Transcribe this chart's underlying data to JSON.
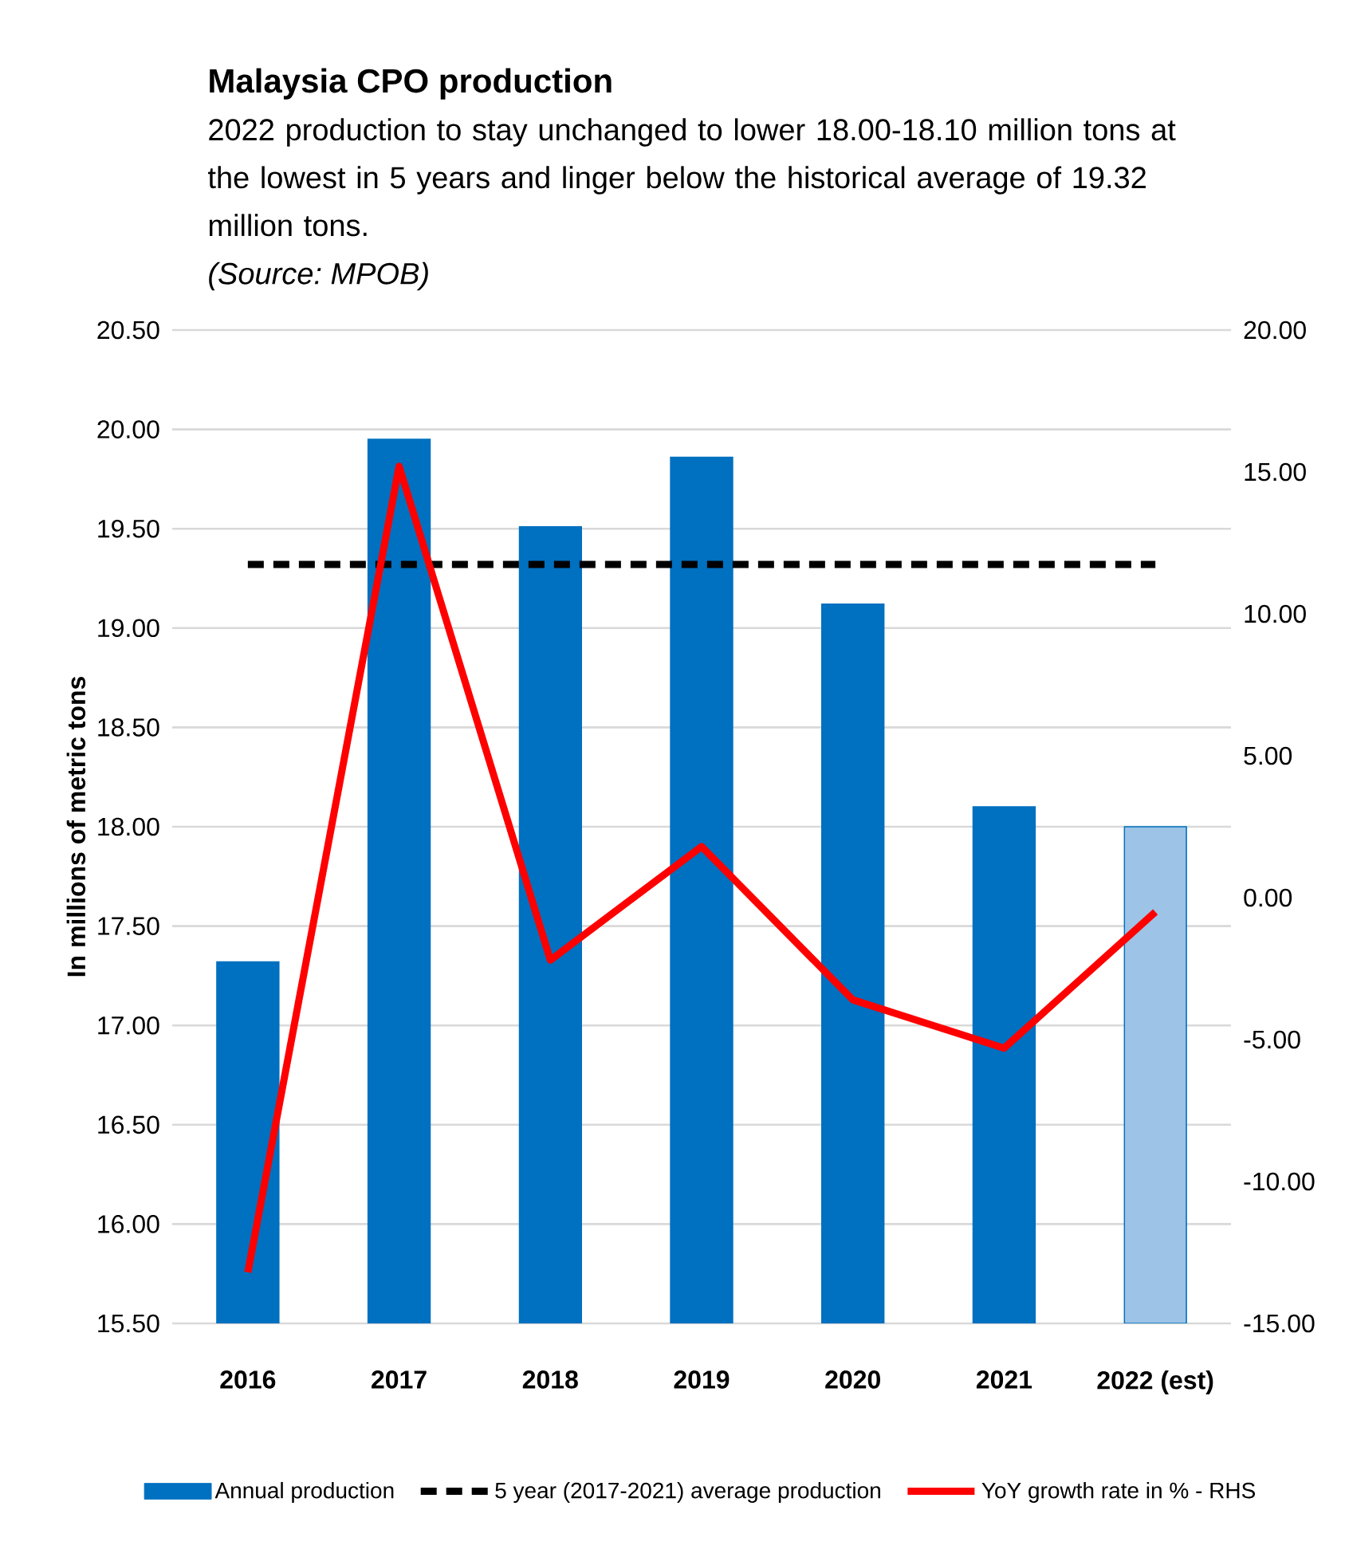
{
  "chart_data": {
    "type": "bar",
    "title": "Malaysia CPO production",
    "subtitle": "2022 production to stay unchanged to lower 18.00-18.10 million tons at the lowest in 5 years and linger below the historical average of 19.32 million tons.",
    "annotations": [
      "(Source: MPOB)"
    ],
    "ylabel": "In millions of metric tons",
    "categories": [
      "2016",
      "2017",
      "2018",
      "2019",
      "2020",
      "2021",
      "2022 (est)"
    ],
    "series": [
      {
        "name": "Annual production",
        "color": "#0070c0",
        "colors": [
          "#0070c0",
          "#0070c0",
          "#0070c0",
          "#0070c0",
          "#0070c0",
          "#0070c0",
          "#9dc3e6"
        ],
        "values": [
          17.32,
          19.95,
          19.51,
          19.86,
          19.12,
          18.1,
          18.0
        ]
      },
      {
        "name": "5 year (2017-2021) average production",
        "type": "line",
        "color": "#000000",
        "line_style": "dashed",
        "values": [
          19.32,
          19.32,
          19.32,
          19.32,
          19.32,
          19.32,
          19.32
        ]
      },
      {
        "name": "YoY growth rate in % - RHS",
        "type": "line",
        "color": "#ff0000",
        "line_style": "solid",
        "axis": "y2",
        "values": [
          -13.2,
          15.2,
          -2.2,
          1.8,
          -3.6,
          -5.3,
          -0.5
        ]
      }
    ],
    "ylim": [
      15.5,
      20.5
    ],
    "yticks": [
      {
        "value": 15.5,
        "label": "15.50"
      },
      {
        "value": 16,
        "label": "16.00"
      },
      {
        "value": 16.5,
        "label": "16.50"
      },
      {
        "value": 17,
        "label": "17.00"
      },
      {
        "value": 17.5,
        "label": "17.50"
      },
      {
        "value": 18,
        "label": "18.00"
      },
      {
        "value": 18.5,
        "label": "18.50"
      },
      {
        "value": 19,
        "label": "19.00"
      },
      {
        "value": 19.5,
        "label": "19.50"
      },
      {
        "value": 20,
        "label": "20.00"
      },
      {
        "value": 20.5,
        "label": "20.50"
      }
    ],
    "y2lim": [
      -15,
      20
    ],
    "y2ticks": [
      {
        "value": -15,
        "label": "-15.00"
      },
      {
        "value": -10,
        "label": "-10.00"
      },
      {
        "value": -5,
        "label": "-5.00"
      },
      {
        "value": 0,
        "label": "0.00"
      },
      {
        "value": 5,
        "label": "5.00"
      },
      {
        "value": 10,
        "label": "10.00"
      },
      {
        "value": 15,
        "label": "15.00"
      },
      {
        "value": 20,
        "label": "20.00"
      }
    ],
    "grid": "y",
    "legend": "bottom",
    "marker": "none"
  }
}
